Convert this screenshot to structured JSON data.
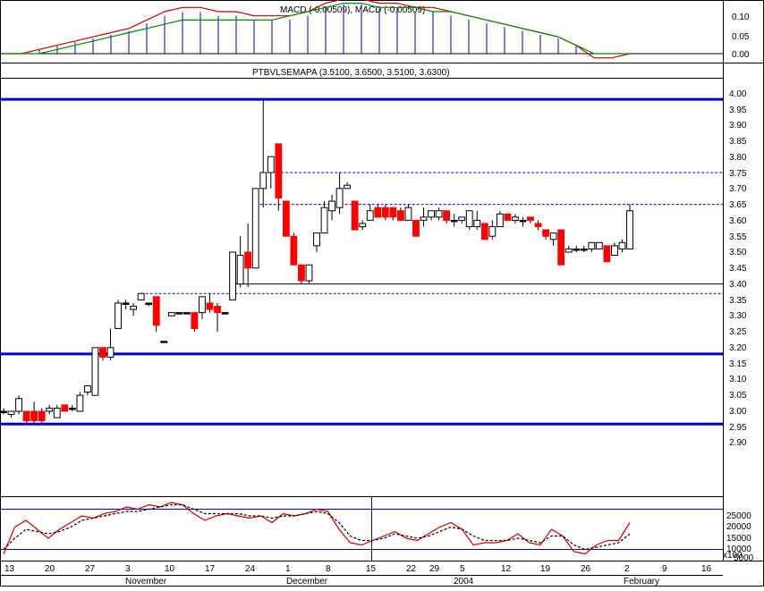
{
  "chart_data": [
    {
      "type": "line",
      "panel": "macd",
      "title": "MACD (-0.00509), MACD (-0.00509)",
      "ylim": [
        -0.03,
        0.15
      ],
      "y_ticks": [
        "0.10",
        "0.05",
        "0.00"
      ],
      "grid": false,
      "histogram_color": "#0000cc",
      "series": [
        {
          "color": "#cc0000",
          "values": [
            0,
            0,
            0.01,
            0.02,
            0.03,
            0.04,
            0.05,
            0.06,
            0.08,
            0.1,
            0.11,
            0.11,
            0.1,
            0.1,
            0.09,
            0.09,
            0.09,
            0.1,
            0.12,
            0.13,
            0.13,
            0.12,
            0.12,
            0.11,
            0.11,
            0.1,
            0.09,
            0.08,
            0.07,
            0.06,
            0.05,
            0.04,
            0.02,
            -0.01,
            -0.01,
            0
          ]
        },
        {
          "color": "#008800",
          "values": [
            0,
            0,
            0,
            0.01,
            0.02,
            0.03,
            0.04,
            0.05,
            0.06,
            0.07,
            0.08,
            0.08,
            0.08,
            0.08,
            0.08,
            0.08,
            0.09,
            0.1,
            0.11,
            0.12,
            0.12,
            0.11,
            0.11,
            0.11,
            0.1,
            0.1,
            0.09,
            0.08,
            0.07,
            0.06,
            0.05,
            0.04,
            0.02,
            0,
            0,
            0
          ]
        }
      ]
    },
    {
      "type": "candlestick",
      "panel": "price",
      "title": "PTBVLSEMAPA (3.5100, 3.6500, 3.5100, 3.6300)",
      "ylim": [
        2.85,
        4.0
      ],
      "y_ticks": [
        "4.00",
        "3.95",
        "3.90",
        "3.85",
        "3.80",
        "3.75",
        "3.70",
        "3.65",
        "3.60",
        "3.55",
        "3.50",
        "3.45",
        "3.40",
        "3.35",
        "3.30",
        "3.25",
        "3.20",
        "3.15",
        "3.10",
        "3.05",
        "3.00",
        "2.95",
        "2.90"
      ],
      "grid": false,
      "up_color": "#ffffff",
      "down_color": "#ff0000",
      "candles": [
        {
          "o": 3.0,
          "h": 3.01,
          "l": 2.99,
          "c": 3.0
        },
        {
          "o": 2.99,
          "h": 3.0,
          "l": 2.98,
          "c": 3.0
        },
        {
          "o": 3.0,
          "h": 3.05,
          "l": 2.99,
          "c": 3.04
        },
        {
          "o": 3.0,
          "h": 3.0,
          "l": 2.96,
          "c": 2.97
        },
        {
          "o": 3.0,
          "h": 3.03,
          "l": 2.96,
          "c": 2.97
        },
        {
          "o": 3.0,
          "h": 3.01,
          "l": 2.96,
          "c": 2.97
        },
        {
          "o": 3.0,
          "h": 3.02,
          "l": 2.99,
          "c": 3.01
        },
        {
          "o": 2.98,
          "h": 3.02,
          "l": 2.98,
          "c": 3.01
        },
        {
          "o": 3.02,
          "h": 3.02,
          "l": 3.0,
          "c": 3.0
        },
        {
          "o": 3.01,
          "h": 3.02,
          "l": 3.0,
          "c": 3.01
        },
        {
          "o": 3.0,
          "h": 3.06,
          "l": 3.0,
          "c": 3.05
        },
        {
          "o": 3.06,
          "h": 3.08,
          "l": 3.05,
          "c": 3.08
        },
        {
          "o": 3.05,
          "h": 3.2,
          "l": 3.05,
          "c": 3.2
        },
        {
          "o": 3.2,
          "h": 3.2,
          "l": 3.16,
          "c": 3.17
        },
        {
          "o": 3.17,
          "h": 3.26,
          "l": 3.16,
          "c": 3.2
        },
        {
          "o": 3.26,
          "h": 3.35,
          "l": 3.26,
          "c": 3.34
        },
        {
          "o": 3.34,
          "h": 3.35,
          "l": 3.32,
          "c": 3.34
        },
        {
          "o": 3.32,
          "h": 3.34,
          "l": 3.3,
          "c": 3.33
        },
        {
          "o": 3.35,
          "h": 3.37,
          "l": 3.35,
          "c": 3.37
        },
        {
          "o": 3.34,
          "h": 3.34,
          "l": 3.33,
          "c": 3.34
        },
        {
          "o": 3.36,
          "h": 3.36,
          "l": 3.25,
          "c": 3.27
        },
        {
          "o": 3.22,
          "h": 3.22,
          "l": 3.22,
          "c": 3.22
        },
        {
          "o": 3.3,
          "h": 3.31,
          "l": 3.3,
          "c": 3.31
        },
        {
          "o": 3.31,
          "h": 3.31,
          "l": 3.31,
          "c": 3.31
        },
        {
          "o": 3.31,
          "h": 3.31,
          "l": 3.31,
          "c": 3.31
        },
        {
          "o": 3.31,
          "h": 3.31,
          "l": 3.25,
          "c": 3.26
        },
        {
          "o": 3.31,
          "h": 3.36,
          "l": 3.29,
          "c": 3.36
        },
        {
          "o": 3.34,
          "h": 3.37,
          "l": 3.31,
          "c": 3.32
        },
        {
          "o": 3.33,
          "h": 3.34,
          "l": 3.25,
          "c": 3.31
        },
        {
          "o": 3.31,
          "h": 3.31,
          "l": 3.31,
          "c": 3.31
        },
        {
          "o": 3.35,
          "h": 3.5,
          "l": 3.35,
          "c": 3.5
        },
        {
          "o": 3.4,
          "h": 3.55,
          "l": 3.39,
          "c": 3.49
        },
        {
          "o": 3.5,
          "h": 3.59,
          "l": 3.39,
          "c": 3.45
        },
        {
          "o": 3.45,
          "h": 3.7,
          "l": 3.45,
          "c": 3.7
        },
        {
          "o": 3.7,
          "h": 3.98,
          "l": 3.64,
          "c": 3.75
        },
        {
          "o": 3.75,
          "h": 3.8,
          "l": 3.7,
          "c": 3.8
        },
        {
          "o": 3.84,
          "h": 3.84,
          "l": 3.63,
          "c": 3.67
        },
        {
          "o": 3.66,
          "h": 3.66,
          "l": 3.55,
          "c": 3.55
        },
        {
          "o": 3.55,
          "h": 3.56,
          "l": 3.46,
          "c": 3.46
        },
        {
          "o": 3.46,
          "h": 3.46,
          "l": 3.4,
          "c": 3.41
        },
        {
          "o": 3.41,
          "h": 3.46,
          "l": 3.4,
          "c": 3.46
        },
        {
          "o": 3.52,
          "h": 3.56,
          "l": 3.5,
          "c": 3.56
        },
        {
          "o": 3.56,
          "h": 3.66,
          "l": 3.56,
          "c": 3.64
        },
        {
          "o": 3.63,
          "h": 3.68,
          "l": 3.6,
          "c": 3.66
        },
        {
          "o": 3.64,
          "h": 3.75,
          "l": 3.62,
          "c": 3.7
        },
        {
          "o": 3.7,
          "h": 3.72,
          "l": 3.7,
          "c": 3.71
        },
        {
          "o": 3.66,
          "h": 3.66,
          "l": 3.57,
          "c": 3.57
        },
        {
          "o": 3.58,
          "h": 3.6,
          "l": 3.57,
          "c": 3.59
        },
        {
          "o": 3.6,
          "h": 3.65,
          "l": 3.6,
          "c": 3.63
        },
        {
          "o": 3.64,
          "h": 3.65,
          "l": 3.61,
          "c": 3.61
        },
        {
          "o": 3.64,
          "h": 3.65,
          "l": 3.6,
          "c": 3.61
        },
        {
          "o": 3.64,
          "h": 3.64,
          "l": 3.6,
          "c": 3.61
        },
        {
          "o": 3.63,
          "h": 3.64,
          "l": 3.6,
          "c": 3.6
        },
        {
          "o": 3.6,
          "h": 3.65,
          "l": 3.6,
          "c": 3.64
        },
        {
          "o": 3.6,
          "h": 3.6,
          "l": 3.55,
          "c": 3.55
        },
        {
          "o": 3.6,
          "h": 3.64,
          "l": 3.58,
          "c": 3.61
        },
        {
          "o": 3.61,
          "h": 3.63,
          "l": 3.6,
          "c": 3.63
        },
        {
          "o": 3.61,
          "h": 3.64,
          "l": 3.6,
          "c": 3.63
        },
        {
          "o": 3.63,
          "h": 3.63,
          "l": 3.59,
          "c": 3.6
        },
        {
          "o": 3.6,
          "h": 3.62,
          "l": 3.58,
          "c": 3.6
        },
        {
          "o": 3.6,
          "h": 3.61,
          "l": 3.59,
          "c": 3.61
        },
        {
          "o": 3.58,
          "h": 3.63,
          "l": 3.57,
          "c": 3.63
        },
        {
          "o": 3.58,
          "h": 3.63,
          "l": 3.57,
          "c": 3.6
        },
        {
          "o": 3.59,
          "h": 3.59,
          "l": 3.54,
          "c": 3.54
        },
        {
          "o": 3.55,
          "h": 3.6,
          "l": 3.54,
          "c": 3.58
        },
        {
          "o": 3.58,
          "h": 3.63,
          "l": 3.58,
          "c": 3.62
        },
        {
          "o": 3.62,
          "h": 3.62,
          "l": 3.6,
          "c": 3.6
        },
        {
          "o": 3.6,
          "h": 3.62,
          "l": 3.59,
          "c": 3.61
        },
        {
          "o": 3.6,
          "h": 3.61,
          "l": 3.58,
          "c": 3.6
        },
        {
          "o": 3.61,
          "h": 3.61,
          "l": 3.59,
          "c": 3.6
        },
        {
          "o": 3.59,
          "h": 3.6,
          "l": 3.57,
          "c": 3.58
        },
        {
          "o": 3.57,
          "h": 3.57,
          "l": 3.54,
          "c": 3.55
        },
        {
          "o": 3.54,
          "h": 3.56,
          "l": 3.52,
          "c": 3.56
        },
        {
          "o": 3.57,
          "h": 3.57,
          "l": 3.46,
          "c": 3.46
        },
        {
          "o": 3.5,
          "h": 3.52,
          "l": 3.5,
          "c": 3.51
        },
        {
          "o": 3.51,
          "h": 3.52,
          "l": 3.5,
          "c": 3.51
        },
        {
          "o": 3.51,
          "h": 3.52,
          "l": 3.5,
          "c": 3.51
        },
        {
          "o": 3.51,
          "h": 3.53,
          "l": 3.5,
          "c": 3.53
        },
        {
          "o": 3.51,
          "h": 3.53,
          "l": 3.51,
          "c": 3.53
        },
        {
          "o": 3.52,
          "h": 3.52,
          "l": 3.47,
          "c": 3.47
        },
        {
          "o": 3.49,
          "h": 3.53,
          "l": 3.49,
          "c": 3.52
        },
        {
          "o": 3.51,
          "h": 3.54,
          "l": 3.5,
          "c": 3.53
        },
        {
          "o": 3.51,
          "h": 3.65,
          "l": 3.51,
          "c": 3.63
        }
      ],
      "horizontal_lines": [
        {
          "y": 3.98,
          "color": "#0000cc",
          "style": "solid",
          "weight": "thick"
        },
        {
          "y": 3.18,
          "color": "#0000cc",
          "style": "solid",
          "weight": "thick"
        },
        {
          "y": 2.96,
          "color": "#0000cc",
          "style": "solid",
          "weight": "thick"
        },
        {
          "y": 3.75,
          "from": 3.75,
          "color": "#0000cc",
          "style": "dashed"
        },
        {
          "y": 3.65,
          "from": 3.65,
          "color": "#0000cc",
          "style": "dashed"
        },
        {
          "y": 3.37,
          "from": 3.37,
          "color": "#0000cc",
          "style": "dashed"
        },
        {
          "y": 3.4,
          "from": 3.4,
          "color": "#000000",
          "style": "solid"
        }
      ]
    },
    {
      "type": "line",
      "panel": "volume",
      "ylim": [
        0,
        28000
      ],
      "y_ticks": [
        "25000",
        "20000",
        "15000",
        "10000",
        "5000"
      ],
      "scale_label": "x100",
      "grid": false,
      "series": [
        {
          "color": "#cc0000",
          "style": "solid",
          "values": [
            3000,
            15000,
            18000,
            14000,
            10000,
            14000,
            17000,
            20000,
            19000,
            21000,
            22000,
            24000,
            23000,
            25000,
            24000,
            26000,
            25000,
            21000,
            18000,
            20000,
            21000,
            20000,
            19000,
            20000,
            17000,
            21000,
            20000,
            21000,
            23000,
            22000,
            14000,
            8000,
            7000,
            9000,
            11000,
            13000,
            10000,
            9000,
            12000,
            15000,
            17000,
            14000,
            7000,
            8000,
            8000,
            9000,
            12000,
            8000,
            7000,
            14000,
            11000,
            4000,
            3000,
            7000,
            9000,
            9000,
            17000
          ]
        },
        {
          "color": "#000000",
          "style": "dashed",
          "values": [
            5000,
            10000,
            14000,
            13000,
            12000,
            13000,
            15000,
            18000,
            19000,
            20000,
            21000,
            22000,
            22000,
            23000,
            24000,
            25000,
            25000,
            23000,
            21000,
            21000,
            21000,
            21000,
            20000,
            20000,
            19000,
            20000,
            20000,
            21000,
            22000,
            21000,
            17000,
            11000,
            9000,
            9000,
            10000,
            12000,
            11000,
            10000,
            11000,
            13000,
            15000,
            14000,
            11000,
            9000,
            9000,
            9000,
            10000,
            9000,
            8000,
            11000,
            11000,
            7000,
            5000,
            6000,
            7000,
            8000,
            12000
          ]
        }
      ]
    }
  ],
  "x_axis": {
    "day_ticks": [
      "13",
      "20",
      "27",
      "3",
      "10",
      "17",
      "24",
      "1",
      "8",
      "15",
      "22",
      "29",
      "5",
      "12",
      "19",
      "26",
      "2",
      "9",
      "16"
    ],
    "months": [
      "November",
      "December",
      "2004",
      "February"
    ]
  }
}
